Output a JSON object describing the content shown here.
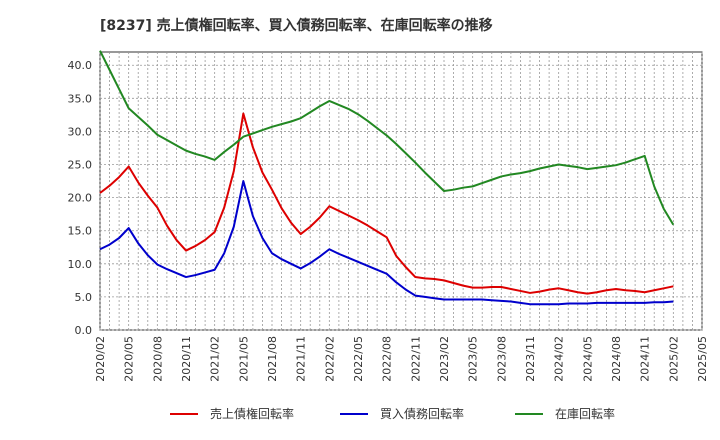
{
  "chart_data": {
    "type": "line",
    "title": "[8237]  売上債権回転率、買入債務回転率、在庫回転率の推移",
    "xlabel": "",
    "ylabel": "",
    "ylim": [
      0,
      42
    ],
    "yticks": [
      0.0,
      5.0,
      10.0,
      15.0,
      20.0,
      25.0,
      30.0,
      35.0,
      40.0
    ],
    "ytick_labels": [
      "0.0",
      "5.0",
      "10.0",
      "15.0",
      "20.0",
      "25.0",
      "30.0",
      "35.0",
      "40.0"
    ],
    "xlim": [
      "2020/02",
      "2025/05"
    ],
    "xtick_labels": [
      "2020/02",
      "2020/05",
      "2020/08",
      "2020/11",
      "2021/02",
      "2021/05",
      "2021/08",
      "2021/11",
      "2022/02",
      "2022/05",
      "2022/08",
      "2022/11",
      "2023/02",
      "2023/05",
      "2023/08",
      "2023/11",
      "2024/02",
      "2024/05",
      "2024/08",
      "2024/11",
      "2025/02",
      "2025/05"
    ],
    "grid": true,
    "x": [
      "2020/02",
      "2020/03",
      "2020/04",
      "2020/05",
      "2020/06",
      "2020/07",
      "2020/08",
      "2020/09",
      "2020/10",
      "2020/11",
      "2020/12",
      "2021/01",
      "2021/02",
      "2021/03",
      "2021/04",
      "2021/05",
      "2021/06",
      "2021/07",
      "2021/08",
      "2021/09",
      "2021/10",
      "2021/11",
      "2021/12",
      "2022/01",
      "2022/02",
      "2022/03",
      "2022/04",
      "2022/05",
      "2022/06",
      "2022/07",
      "2022/08",
      "2022/09",
      "2022/10",
      "2022/11",
      "2022/12",
      "2023/01",
      "2023/02",
      "2023/03",
      "2023/04",
      "2023/05",
      "2023/06",
      "2023/07",
      "2023/08",
      "2023/09",
      "2023/10",
      "2023/11",
      "2023/12",
      "2024/01",
      "2024/02",
      "2024/03",
      "2024/04",
      "2024/05",
      "2024/06",
      "2024/07",
      "2024/08",
      "2024/09",
      "2024/10",
      "2024/11",
      "2024/12",
      "2025/01",
      "2025/02"
    ],
    "series": [
      {
        "name": "売上債権回転率",
        "color": "#dd0000",
        "values": [
          20.7,
          21.8,
          23.1,
          24.7,
          22.3,
          20.3,
          18.5,
          15.8,
          13.6,
          12.0,
          12.7,
          13.6,
          14.8,
          18.5,
          24.0,
          32.7,
          27.6,
          23.8,
          21.2,
          18.4,
          16.2,
          14.5,
          15.6,
          17.0,
          18.7,
          18.0,
          17.3,
          16.6,
          15.8,
          14.9,
          14.0,
          11.2,
          9.5,
          8.0,
          7.8,
          7.7,
          7.5,
          7.1,
          6.7,
          6.4,
          6.4,
          6.5,
          6.5,
          6.2,
          5.9,
          5.6,
          5.8,
          6.1,
          6.3,
          6.0,
          5.7,
          5.5,
          5.7,
          6.0,
          6.2,
          6.0,
          5.9,
          5.7,
          6.0,
          6.3,
          6.6
        ]
      },
      {
        "name": "買入債務回転率",
        "color": "#0000cc",
        "values": [
          12.2,
          12.9,
          13.9,
          15.4,
          13.1,
          11.3,
          9.9,
          9.2,
          8.6,
          8.0,
          8.3,
          8.7,
          9.1,
          11.6,
          15.6,
          22.5,
          17.2,
          13.9,
          11.6,
          10.7,
          10.0,
          9.3,
          10.1,
          11.1,
          12.2,
          11.5,
          10.9,
          10.3,
          9.7,
          9.1,
          8.5,
          7.2,
          6.1,
          5.2,
          5.0,
          4.8,
          4.6,
          4.6,
          4.6,
          4.6,
          4.6,
          4.5,
          4.4,
          4.3,
          4.1,
          3.9,
          3.9,
          3.9,
          3.9,
          4.0,
          4.0,
          4.0,
          4.1,
          4.1,
          4.1,
          4.1,
          4.1,
          4.1,
          4.2,
          4.2,
          4.3
        ]
      },
      {
        "name": "在庫回転率",
        "color": "#228822",
        "values": [
          42.2,
          39.3,
          36.4,
          33.5,
          32.2,
          30.9,
          29.5,
          28.7,
          27.9,
          27.1,
          26.6,
          26.2,
          25.7,
          26.9,
          28.0,
          29.2,
          29.7,
          30.2,
          30.7,
          31.1,
          31.5,
          32.0,
          32.9,
          33.8,
          34.6,
          34.0,
          33.4,
          32.6,
          31.6,
          30.5,
          29.4,
          28.1,
          26.7,
          25.3,
          23.8,
          22.4,
          21.0,
          21.2,
          21.5,
          21.7,
          22.2,
          22.7,
          23.2,
          23.5,
          23.7,
          24.0,
          24.4,
          24.7,
          25.0,
          24.8,
          24.6,
          24.3,
          24.5,
          24.7,
          24.9,
          25.3,
          25.8,
          26.3,
          21.7,
          18.3,
          15.9
        ]
      }
    ],
    "legend": {
      "position": "bottom",
      "labels": [
        "売上債権回転率",
        "買入債務回転率",
        "在庫回転率"
      ]
    }
  }
}
